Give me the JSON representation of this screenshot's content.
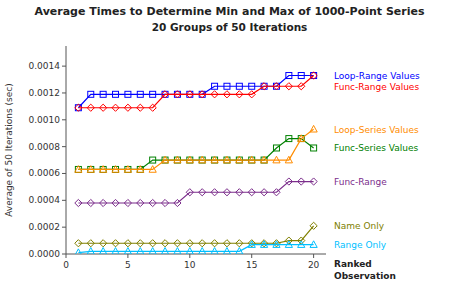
{
  "chart_data": {
    "type": "line",
    "title": "Average Times to Determine Min and Max of 1000-Point Series",
    "subtitle": "20 Groups of 50 Iterations",
    "xlabel": "Ranked\nObservation",
    "ylabel": "Average of 50 Iterations (sec)",
    "x": [
      1,
      2,
      3,
      4,
      5,
      6,
      7,
      8,
      9,
      10,
      11,
      12,
      13,
      14,
      15,
      16,
      17,
      18,
      19,
      20
    ],
    "xlim": [
      0,
      21
    ],
    "xticks": [
      0,
      5,
      10,
      15,
      20
    ],
    "ylim": [
      0,
      0.00155
    ],
    "yticks": [
      {
        "value": 0,
        "label": "0.0000"
      },
      {
        "value": 0.0002,
        "label": "0.0002"
      },
      {
        "value": 0.0004,
        "label": "0.0004"
      },
      {
        "value": 0.0006,
        "label": "0.0006"
      },
      {
        "value": 0.0008,
        "label": "0.0008"
      },
      {
        "value": 0.001,
        "label": "0.0010"
      },
      {
        "value": 0.0012,
        "label": "0.0012"
      },
      {
        "value": 0.0014,
        "label": "0.0014"
      }
    ],
    "grid": false,
    "series": [
      {
        "name": "Loop-Range Values",
        "color": "#0000FF",
        "marker": "square",
        "values": [
          0.00109,
          0.00119,
          0.00119,
          0.00119,
          0.00119,
          0.00119,
          0.00119,
          0.00119,
          0.00119,
          0.00119,
          0.00119,
          0.00125,
          0.00125,
          0.00125,
          0.00125,
          0.00125,
          0.00125,
          0.00133,
          0.00133,
          0.00133
        ]
      },
      {
        "name": "Func-Range Values",
        "color": "#FF0000",
        "marker": "diamond",
        "values": [
          0.00109,
          0.00109,
          0.00109,
          0.00109,
          0.00109,
          0.00109,
          0.00109,
          0.00119,
          0.00119,
          0.00119,
          0.00119,
          0.00119,
          0.00119,
          0.00119,
          0.00119,
          0.00125,
          0.00125,
          0.00125,
          0.00125,
          0.00133
        ]
      },
      {
        "name": "Func-Series Values",
        "color": "#008000",
        "marker": "square",
        "values": [
          0.00063,
          0.00063,
          0.00063,
          0.00063,
          0.00063,
          0.00063,
          0.0007,
          0.0007,
          0.0007,
          0.0007,
          0.0007,
          0.0007,
          0.0007,
          0.0007,
          0.0007,
          0.0007,
          0.00079,
          0.00086,
          0.00086,
          0.00079
        ]
      },
      {
        "name": "Loop-Series Values",
        "color": "#FF8C00",
        "marker": "triangle",
        "values": [
          0.00063,
          0.00063,
          0.00063,
          0.00063,
          0.00063,
          0.00063,
          0.00063,
          0.0007,
          0.0007,
          0.0007,
          0.0007,
          0.0007,
          0.0007,
          0.0007,
          0.0007,
          0.0007,
          0.0007,
          0.0007,
          0.00086,
          0.00093
        ]
      },
      {
        "name": "Func-Range",
        "color": "#7B2D8B",
        "marker": "diamond",
        "values": [
          0.00038,
          0.00038,
          0.00038,
          0.00038,
          0.00038,
          0.00038,
          0.00038,
          0.00038,
          0.00038,
          0.00046,
          0.00046,
          0.00046,
          0.00046,
          0.00046,
          0.00046,
          0.00046,
          0.00046,
          0.00054,
          0.00054,
          0.00054
        ]
      },
      {
        "name": "Name Only",
        "color": "#808000",
        "marker": "diamond",
        "values": [
          8e-05,
          8e-05,
          8e-05,
          8e-05,
          8e-05,
          8e-05,
          8e-05,
          8e-05,
          8e-05,
          8e-05,
          8e-05,
          8e-05,
          8e-05,
          8e-05,
          8e-05,
          8e-05,
          8e-05,
          0.0001,
          0.0001,
          0.00021
        ]
      },
      {
        "name": "Range Only",
        "color": "#00BFFF",
        "marker": "triangle",
        "values": [
          1e-05,
          2e-05,
          2e-05,
          2e-05,
          2e-05,
          2e-05,
          2e-05,
          2e-05,
          2e-05,
          2e-05,
          2e-05,
          2e-05,
          2e-05,
          2e-05,
          7e-05,
          7e-05,
          7e-05,
          7e-05,
          7e-05,
          7e-05
        ]
      }
    ]
  }
}
